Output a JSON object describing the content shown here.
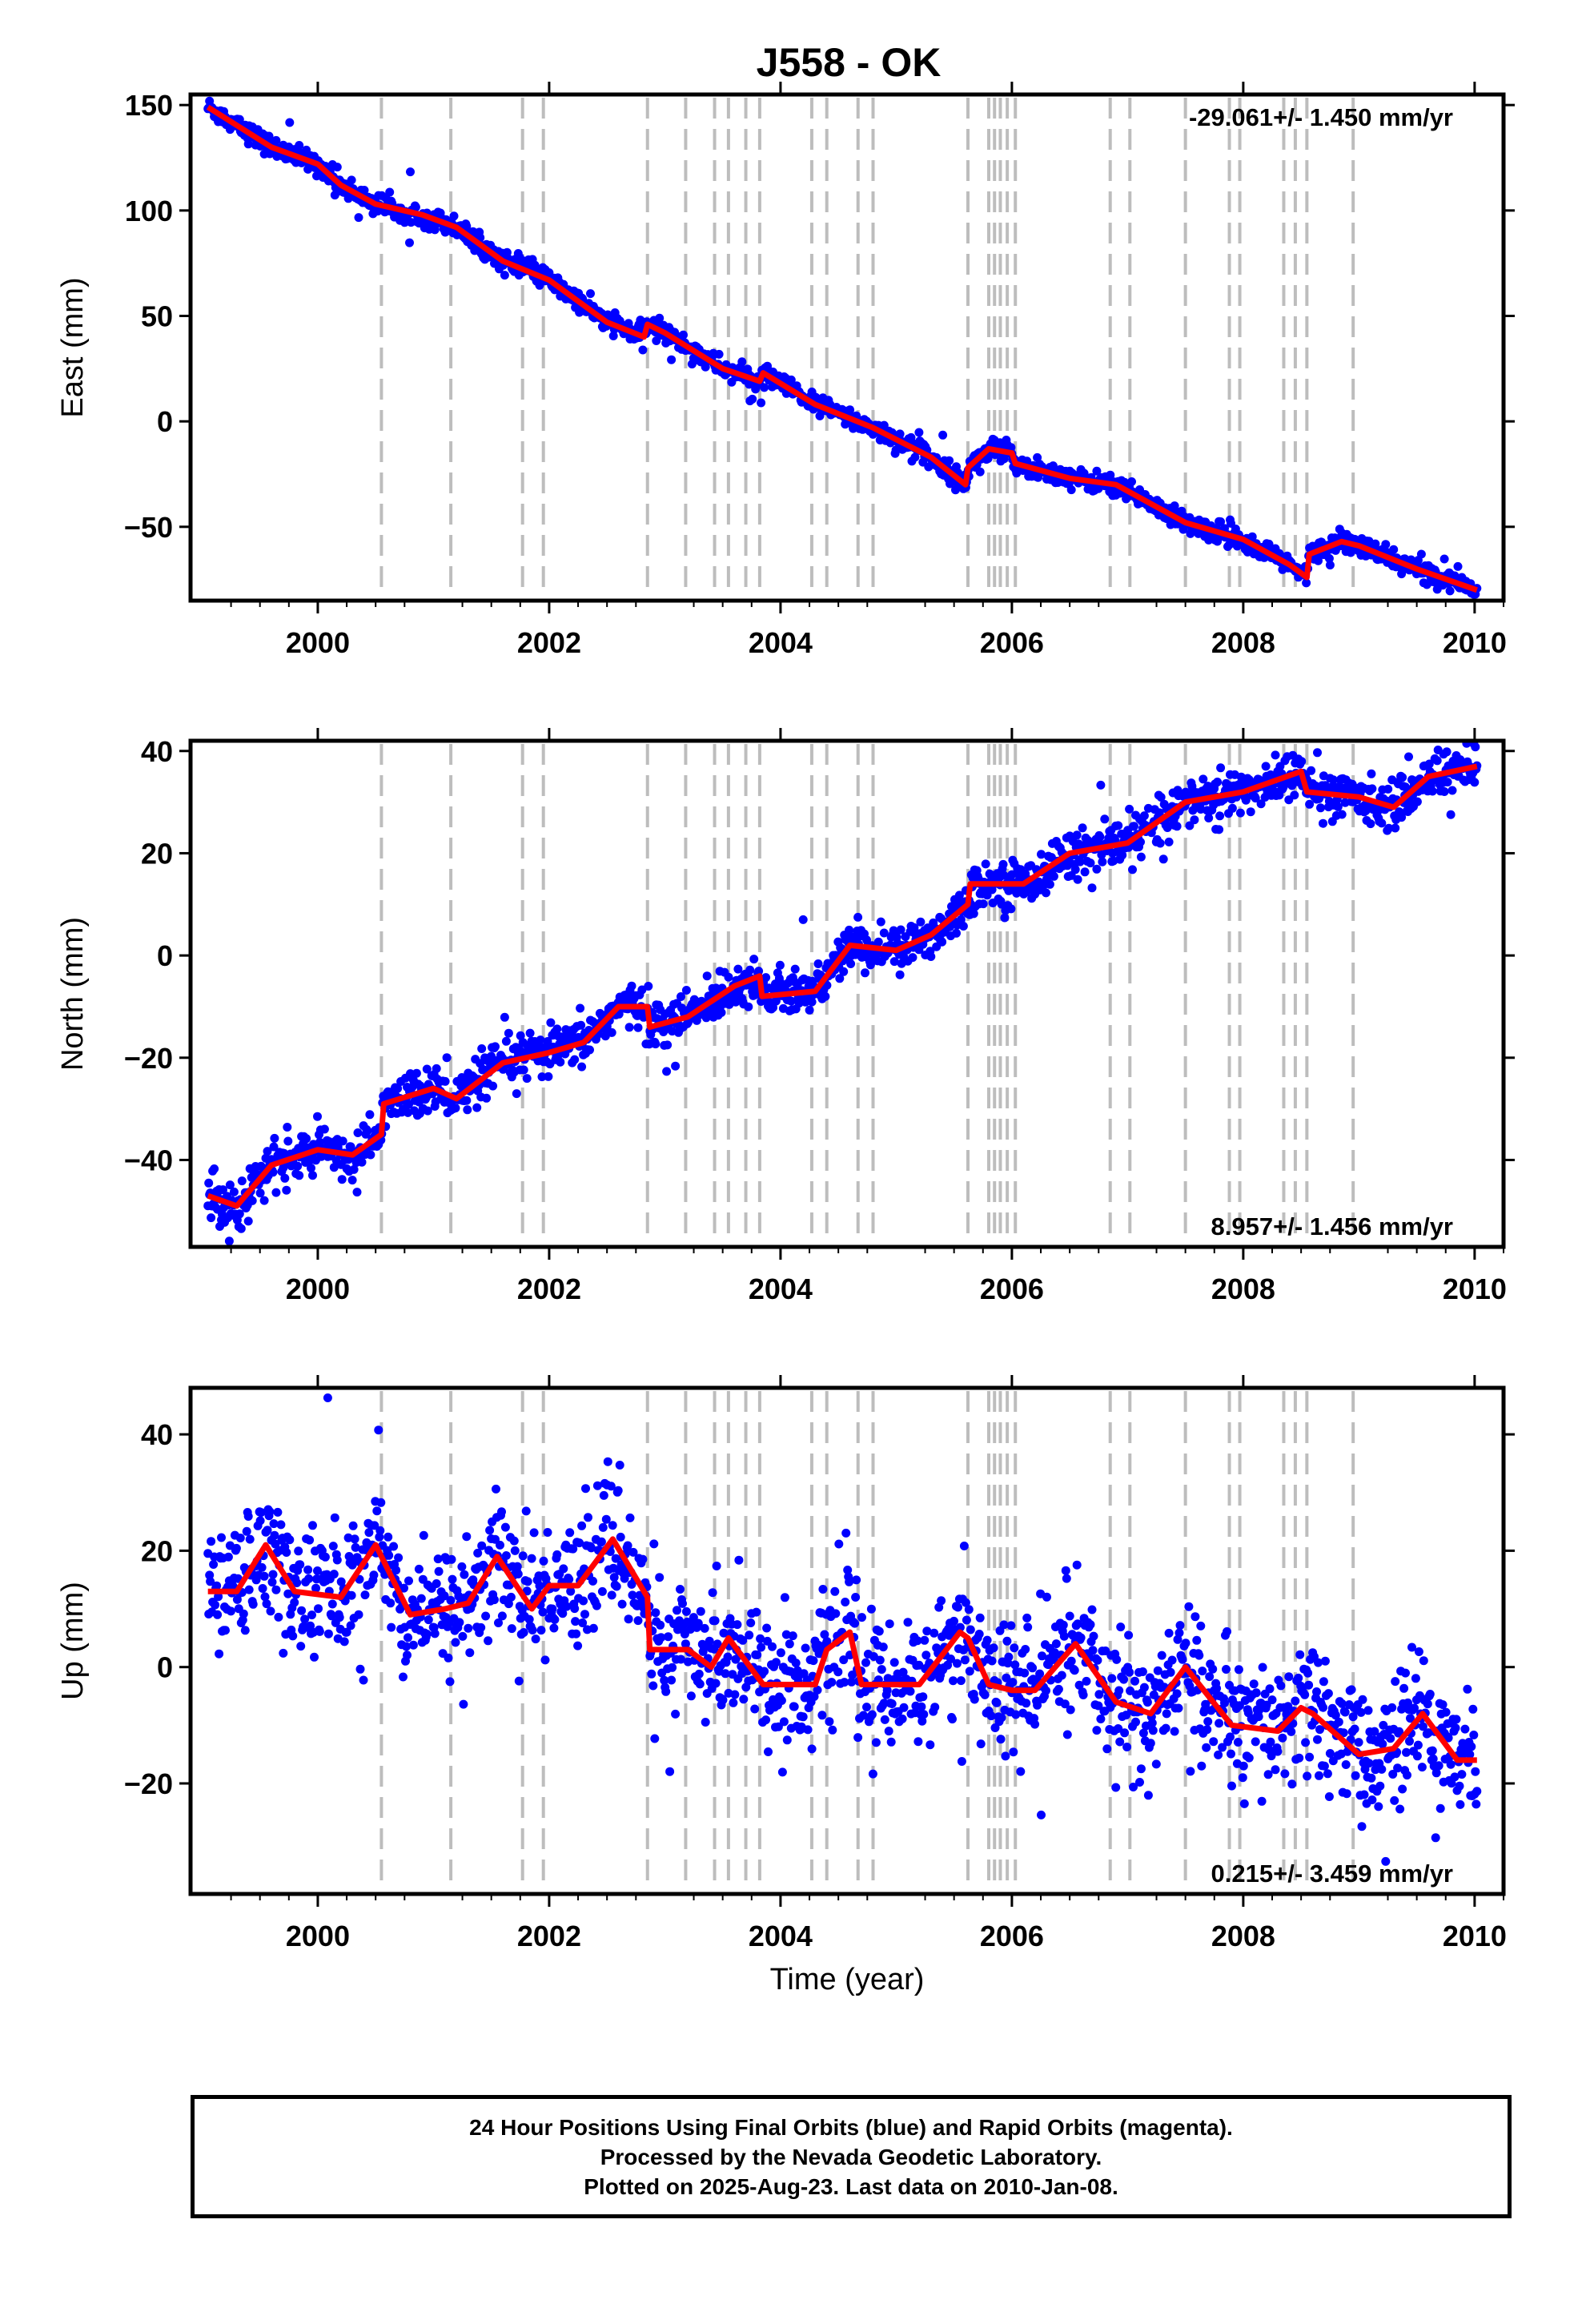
{
  "chart_data": [
    {
      "type": "scatter",
      "panel": "east",
      "title": "J558 - OK",
      "xlabel": "",
      "ylabel": "East (mm)",
      "xlim": [
        1998.9,
        2010.25
      ],
      "ylim": [
        -85,
        155
      ],
      "xticks": [
        2000,
        2002,
        2004,
        2006,
        2008,
        2010
      ],
      "xtick_labels": [
        "2000",
        "2002",
        "2004",
        "2006",
        "2008",
        "2010"
      ],
      "yticks": [
        150,
        100,
        50,
        0,
        -50
      ],
      "ytick_labels": [
        "150",
        "100",
        "50",
        "0",
        "−50"
      ],
      "rate_text": "-29.061+/- 1.450 mm/yr",
      "rate_position": "top-right",
      "grid": false,
      "point_color": "#0000ff",
      "fit_color": "#ff0000",
      "event_line_color": "#bdbdbd",
      "event_lines": [
        2000.55,
        2001.15,
        2001.77,
        2001.95,
        2002.85,
        2003.18,
        2003.43,
        2003.55,
        2003.7,
        2003.82,
        2004.27,
        2004.4,
        2004.67,
        2004.8,
        2005.62,
        2005.8,
        2005.85,
        2005.9,
        2005.96,
        2006.03,
        2006.85,
        2007.02,
        2007.5,
        2007.88,
        2007.97,
        2008.35,
        2008.45,
        2008.55,
        2008.95
      ],
      "scatter": {
        "first_year": 1999.05,
        "last_year": 2010.02,
        "noise_sd": 2.4,
        "outlier_sd": 7,
        "point_count": 1600
      },
      "fit_line": [
        {
          "x": 1999.05,
          "y": 149
        },
        {
          "x": 1999.6,
          "y": 130
        },
        {
          "x": 2000.0,
          "y": 122
        },
        {
          "x": 2000.2,
          "y": 112
        },
        {
          "x": 2000.5,
          "y": 103
        },
        {
          "x": 2000.9,
          "y": 98
        },
        {
          "x": 2001.2,
          "y": 92
        },
        {
          "x": 2001.6,
          "y": 76
        },
        {
          "x": 2002.0,
          "y": 67
        },
        {
          "x": 2002.5,
          "y": 47
        },
        {
          "x": 2002.82,
          "y": 40
        },
        {
          "x": 2002.85,
          "y": 46
        },
        {
          "x": 2003.0,
          "y": 42
        },
        {
          "x": 2003.5,
          "y": 25
        },
        {
          "x": 2003.82,
          "y": 19
        },
        {
          "x": 2003.85,
          "y": 23
        },
        {
          "x": 2004.3,
          "y": 8
        },
        {
          "x": 2004.8,
          "y": -3
        },
        {
          "x": 2005.3,
          "y": -17
        },
        {
          "x": 2005.6,
          "y": -30
        },
        {
          "x": 2005.62,
          "y": -22
        },
        {
          "x": 2005.8,
          "y": -13
        },
        {
          "x": 2006.0,
          "y": -15
        },
        {
          "x": 2006.03,
          "y": -20
        },
        {
          "x": 2006.5,
          "y": -27
        },
        {
          "x": 2006.9,
          "y": -30
        },
        {
          "x": 2007.5,
          "y": -48
        },
        {
          "x": 2008.0,
          "y": -56
        },
        {
          "x": 2008.4,
          "y": -68
        },
        {
          "x": 2008.55,
          "y": -74
        },
        {
          "x": 2008.57,
          "y": -63
        },
        {
          "x": 2008.85,
          "y": -57
        },
        {
          "x": 2009.0,
          "y": -59
        },
        {
          "x": 2009.5,
          "y": -70
        },
        {
          "x": 2010.02,
          "y": -80
        }
      ]
    },
    {
      "type": "scatter",
      "panel": "north",
      "xlabel": "",
      "ylabel": "North (mm)",
      "xlim": [
        1998.9,
        2010.25
      ],
      "ylim": [
        -57,
        42
      ],
      "xticks": [
        2000,
        2002,
        2004,
        2006,
        2008,
        2010
      ],
      "xtick_labels": [
        "2000",
        "2002",
        "2004",
        "2006",
        "2008",
        "2010"
      ],
      "yticks": [
        40,
        20,
        0,
        -20,
        -40
      ],
      "ytick_labels": [
        "40",
        "20",
        "0",
        "−20",
        "−40"
      ],
      "rate_text": "8.957+/- 1.456 mm/yr",
      "rate_position": "bottom-right",
      "grid": false,
      "point_color": "#0000ff",
      "fit_color": "#ff0000",
      "event_line_color": "#bdbdbd",
      "event_lines": [
        2000.55,
        2001.15,
        2001.77,
        2001.95,
        2002.85,
        2003.18,
        2003.43,
        2003.55,
        2003.7,
        2003.82,
        2004.27,
        2004.4,
        2004.67,
        2004.8,
        2005.62,
        2005.8,
        2005.85,
        2005.9,
        2005.96,
        2006.03,
        2006.85,
        2007.02,
        2007.5,
        2007.88,
        2007.97,
        2008.35,
        2008.45,
        2008.55,
        2008.95
      ],
      "scatter": {
        "first_year": 1999.05,
        "last_year": 2010.02,
        "noise_sd": 2.2,
        "outlier_sd": 6,
        "point_count": 1600
      },
      "fit_line": [
        {
          "x": 1999.05,
          "y": -47
        },
        {
          "x": 1999.3,
          "y": -49
        },
        {
          "x": 1999.6,
          "y": -41
        },
        {
          "x": 2000.0,
          "y": -38
        },
        {
          "x": 2000.3,
          "y": -39
        },
        {
          "x": 2000.55,
          "y": -35
        },
        {
          "x": 2000.57,
          "y": -29
        },
        {
          "x": 2001.0,
          "y": -26
        },
        {
          "x": 2001.2,
          "y": -28
        },
        {
          "x": 2001.6,
          "y": -21
        },
        {
          "x": 2002.0,
          "y": -19
        },
        {
          "x": 2002.3,
          "y": -17
        },
        {
          "x": 2002.6,
          "y": -10
        },
        {
          "x": 2002.85,
          "y": -10
        },
        {
          "x": 2002.87,
          "y": -14
        },
        {
          "x": 2003.2,
          "y": -12
        },
        {
          "x": 2003.6,
          "y": -6
        },
        {
          "x": 2003.82,
          "y": -4
        },
        {
          "x": 2003.84,
          "y": -8
        },
        {
          "x": 2004.3,
          "y": -7
        },
        {
          "x": 2004.6,
          "y": 2
        },
        {
          "x": 2005.0,
          "y": 1
        },
        {
          "x": 2005.3,
          "y": 4
        },
        {
          "x": 2005.62,
          "y": 10
        },
        {
          "x": 2005.64,
          "y": 14
        },
        {
          "x": 2006.1,
          "y": 14
        },
        {
          "x": 2006.5,
          "y": 20
        },
        {
          "x": 2007.0,
          "y": 22
        },
        {
          "x": 2007.5,
          "y": 30
        },
        {
          "x": 2008.0,
          "y": 32
        },
        {
          "x": 2008.5,
          "y": 36
        },
        {
          "x": 2008.55,
          "y": 32
        },
        {
          "x": 2009.0,
          "y": 31
        },
        {
          "x": 2009.3,
          "y": 29
        },
        {
          "x": 2009.6,
          "y": 35
        },
        {
          "x": 2010.02,
          "y": 37
        }
      ]
    },
    {
      "type": "scatter",
      "panel": "up",
      "xlabel": "Time (year)",
      "ylabel": "Up (mm)",
      "xlim": [
        1998.9,
        2010.25
      ],
      "ylim": [
        -39,
        48
      ],
      "xticks": [
        2000,
        2002,
        2004,
        2006,
        2008,
        2010
      ],
      "xtick_labels": [
        "2000",
        "2002",
        "2004",
        "2006",
        "2008",
        "2010"
      ],
      "yticks": [
        40,
        20,
        0,
        -20
      ],
      "ytick_labels": [
        "40",
        "20",
        "0",
        "−20"
      ],
      "rate_text": "0.215+/- 3.459 mm/yr",
      "rate_position": "bottom-right",
      "grid": false,
      "point_color": "#0000ff",
      "fit_color": "#ff0000",
      "event_line_color": "#bdbdbd",
      "event_lines": [
        2000.55,
        2001.15,
        2001.77,
        2001.95,
        2002.85,
        2003.18,
        2003.43,
        2003.55,
        2003.7,
        2003.82,
        2004.27,
        2004.4,
        2004.67,
        2004.8,
        2005.62,
        2005.8,
        2005.85,
        2005.9,
        2005.96,
        2006.03,
        2006.85,
        2007.02,
        2007.5,
        2007.88,
        2007.97,
        2008.35,
        2008.45,
        2008.55,
        2008.95
      ],
      "scatter": {
        "first_year": 1999.05,
        "last_year": 2010.02,
        "noise_sd": 5.5,
        "outlier_sd": 14,
        "point_count": 1600
      },
      "fit_line": [
        {
          "x": 1999.05,
          "y": 13
        },
        {
          "x": 1999.3,
          "y": 13
        },
        {
          "x": 1999.55,
          "y": 21
        },
        {
          "x": 1999.8,
          "y": 13
        },
        {
          "x": 2000.2,
          "y": 12
        },
        {
          "x": 2000.5,
          "y": 21
        },
        {
          "x": 2000.8,
          "y": 9
        },
        {
          "x": 2001.1,
          "y": 10
        },
        {
          "x": 2001.3,
          "y": 11
        },
        {
          "x": 2001.55,
          "y": 19
        },
        {
          "x": 2001.85,
          "y": 10
        },
        {
          "x": 2002.0,
          "y": 14
        },
        {
          "x": 2002.25,
          "y": 14
        },
        {
          "x": 2002.55,
          "y": 22
        },
        {
          "x": 2002.85,
          "y": 12
        },
        {
          "x": 2002.87,
          "y": 3
        },
        {
          "x": 2003.2,
          "y": 3
        },
        {
          "x": 2003.4,
          "y": 0
        },
        {
          "x": 2003.55,
          "y": 5
        },
        {
          "x": 2003.85,
          "y": -3
        },
        {
          "x": 2004.3,
          "y": -3
        },
        {
          "x": 2004.4,
          "y": 3
        },
        {
          "x": 2004.6,
          "y": 6
        },
        {
          "x": 2004.7,
          "y": -3
        },
        {
          "x": 2005.2,
          "y": -3
        },
        {
          "x": 2005.55,
          "y": 6
        },
        {
          "x": 2005.62,
          "y": 5
        },
        {
          "x": 2005.8,
          "y": -3
        },
        {
          "x": 2006.0,
          "y": -4
        },
        {
          "x": 2006.2,
          "y": -4
        },
        {
          "x": 2006.55,
          "y": 4
        },
        {
          "x": 2006.9,
          "y": -6
        },
        {
          "x": 2007.2,
          "y": -8
        },
        {
          "x": 2007.5,
          "y": 0
        },
        {
          "x": 2007.9,
          "y": -10
        },
        {
          "x": 2008.3,
          "y": -11
        },
        {
          "x": 2008.5,
          "y": -7
        },
        {
          "x": 2008.6,
          "y": -8
        },
        {
          "x": 2009.0,
          "y": -15
        },
        {
          "x": 2009.3,
          "y": -14
        },
        {
          "x": 2009.55,
          "y": -8
        },
        {
          "x": 2009.85,
          "y": -16
        },
        {
          "x": 2010.02,
          "y": -16
        }
      ]
    }
  ],
  "caption": {
    "line1": "24 Hour Positions Using Final Orbits (blue) and Rapid Orbits (magenta).",
    "line2": "Processed by the Nevada Geodetic Laboratory.",
    "line3": "Plotted on 2025-Aug-23. Last data on 2010-Jan-08."
  }
}
